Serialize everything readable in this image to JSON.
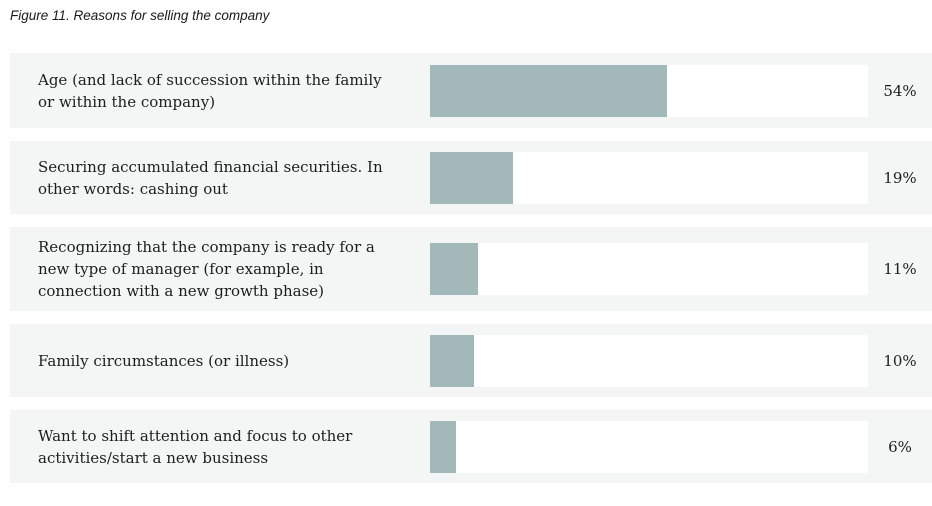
{
  "figure": {
    "title": "Figure 11. Reasons for selling the company"
  },
  "chart_data": {
    "type": "bar",
    "orientation": "horizontal",
    "title": "Figure 11. Reasons for selling the company",
    "categories": [
      "Age (and lack of succession within the family or within the company)",
      "Securing accumulated financial securities. In other words: cashing out",
      "Recognizing that the company is ready for a new type of manager (for example, in connection with a new growth phase)",
      "Family circumstances (or illness)",
      "Want to shift attention and focus to other activities/start a new business"
    ],
    "values": [
      54,
      19,
      11,
      10,
      6
    ],
    "value_labels": [
      "54%",
      "19%",
      "11%",
      "10%",
      "6%"
    ],
    "unit": "%",
    "xlim": [
      0,
      100
    ],
    "xlabel": "",
    "ylabel": "",
    "grid": false,
    "legend": false,
    "bar_color": "#a3b8b9",
    "track_color": "#ffffff",
    "row_background_color": "#f4f6f6",
    "text_color": "#1d1d1d"
  }
}
